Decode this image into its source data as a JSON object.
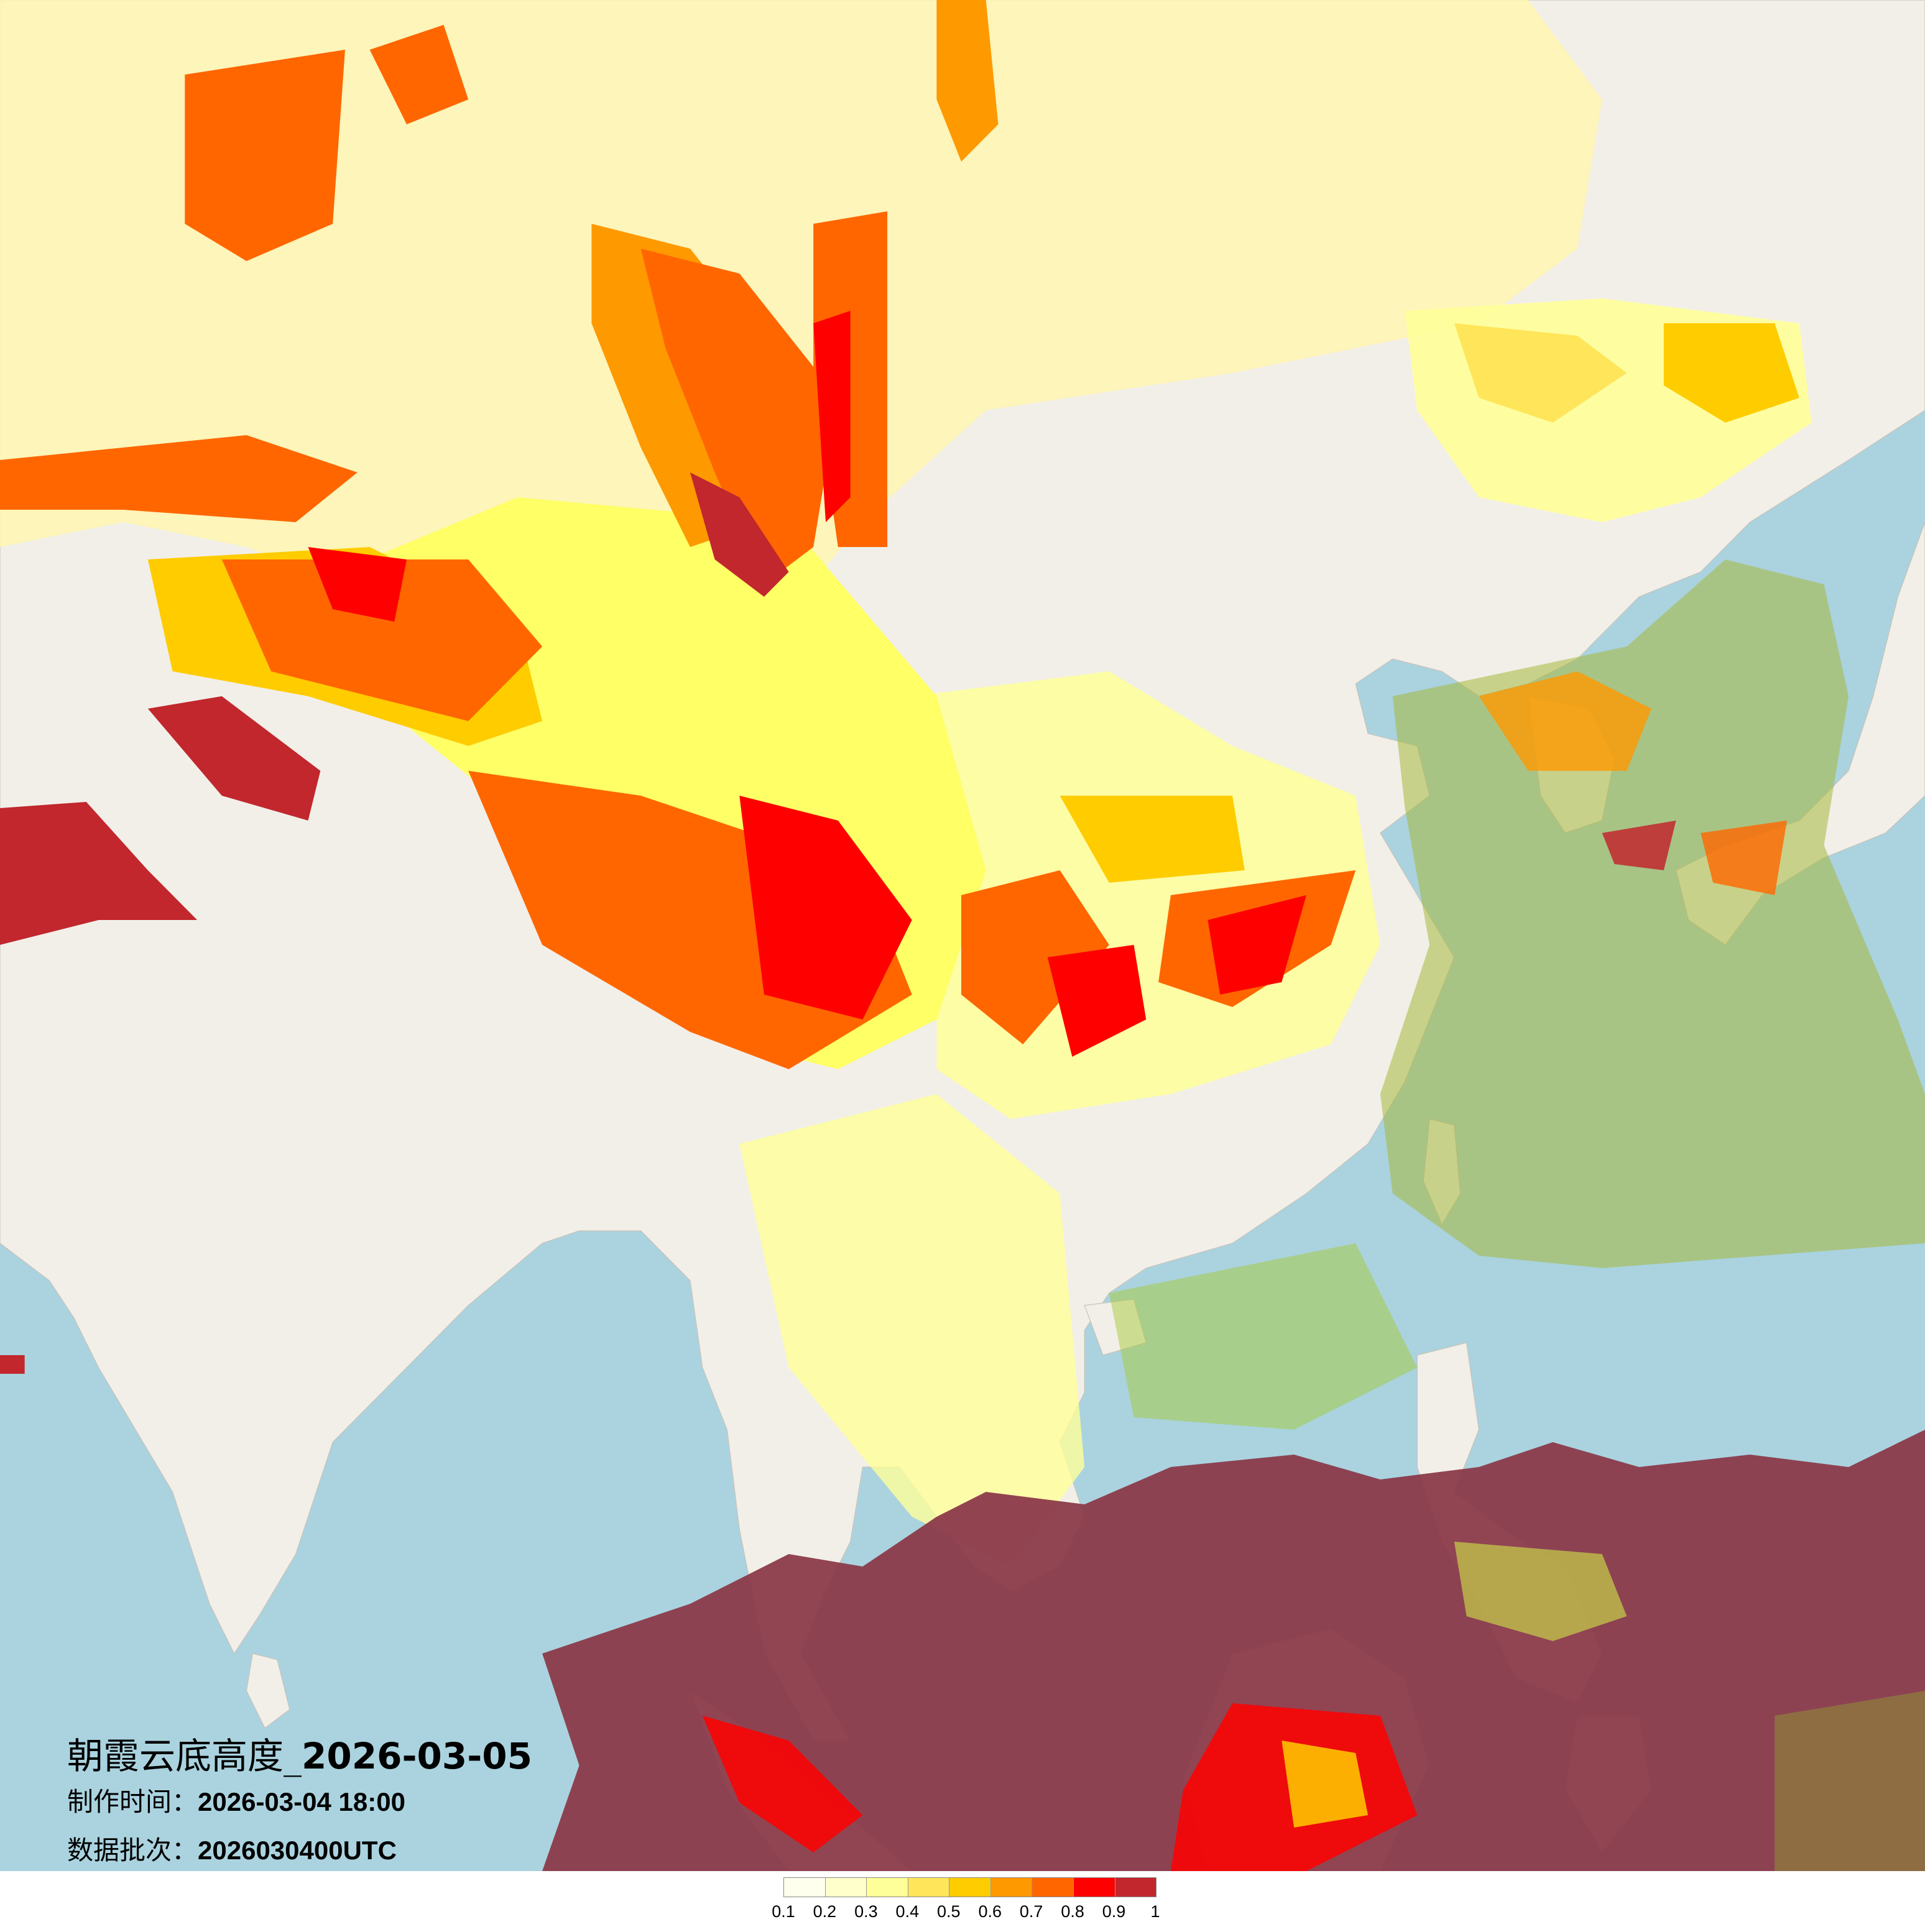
{
  "title": {
    "main_cn": "朝霞云底高度_",
    "main_date": "2026-03-05",
    "made_label": "制作时间：",
    "made_value": "2026-03-04 18:00",
    "batch_label": "数据批次：",
    "batch_value": "2026030400UTC"
  },
  "map": {
    "sea_color": "#aad3df",
    "land_color": "#f2efe9"
  },
  "legend": {
    "labels": [
      "0.1",
      "0.2",
      "0.3",
      "0.4",
      "0.5",
      "0.6",
      "0.7",
      "0.8",
      "0.9",
      "1"
    ],
    "colors": [
      "#ffffee",
      "#ffffcc",
      "#ffff99",
      "#ffe55a",
      "#ffcc00",
      "#ff9900",
      "#ff6600",
      "#ff0000",
      "#c1272d"
    ]
  }
}
